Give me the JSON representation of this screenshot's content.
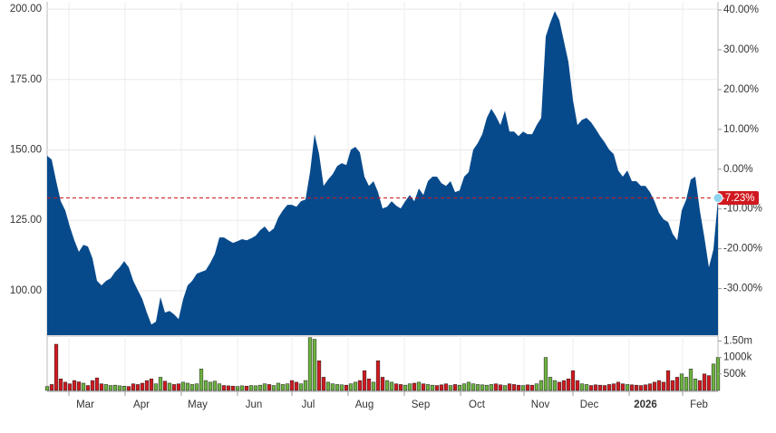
{
  "chart_data": [
    {
      "type": "area",
      "color": "#074a8c",
      "grid": true,
      "values": [
        147.9,
        146.6,
        138.9,
        131.8,
        128.5,
        122.8,
        117.9,
        113.8,
        116.3,
        115.7,
        111.5,
        103.5,
        101.9,
        103.5,
        104.4,
        106.7,
        108.3,
        110.5,
        108.3,
        103.5,
        100.2,
        97.0,
        92.2,
        88.0,
        89.0,
        97.7,
        92.2,
        92.8,
        91.6,
        89.9,
        97.0,
        101.9,
        103.5,
        106.0,
        106.7,
        107.3,
        109.9,
        113.1,
        118.9,
        118.9,
        117.9,
        117.0,
        117.6,
        118.3,
        117.9,
        118.6,
        119.5,
        121.5,
        122.8,
        120.8,
        122.1,
        126.0,
        128.5,
        130.5,
        130.5,
        129.8,
        131.8,
        132.4,
        142.1,
        155.6,
        148.5,
        137.2,
        139.5,
        141.4,
        144.3,
        145.3,
        144.6,
        150.1,
        151.1,
        149.1,
        140.5,
        137.2,
        138.9,
        135.0,
        129.2,
        129.8,
        131.8,
        130.2,
        129.2,
        131.8,
        134.0,
        131.8,
        136.3,
        134.0,
        138.9,
        140.5,
        140.5,
        138.2,
        137.2,
        138.9,
        135.0,
        135.6,
        140.5,
        142.1,
        150.1,
        152.4,
        155.6,
        161.4,
        164.6,
        162.0,
        158.8,
        163.9,
        156.5,
        156.5,
        154.9,
        156.5,
        155.6,
        155.6,
        158.8,
        161.4,
        190.3,
        195.2,
        199.3,
        196.1,
        188.7,
        181.3,
        167.8,
        158.8,
        160.7,
        161.4,
        159.8,
        157.5,
        154.9,
        152.7,
        150.1,
        148.5,
        142.7,
        140.5,
        142.7,
        138.9,
        138.9,
        137.2,
        137.2,
        135.0,
        131.8,
        127.6,
        125.3,
        124.4,
        120.2,
        117.9,
        128.5,
        132.4,
        139.5,
        140.5,
        128.5,
        118.9,
        108.3,
        114.7,
        132.7
      ],
      "xlim": [
        0,
        148
      ],
      "ylim": [
        84.2,
        202.6
      ],
      "yticks": [
        {
          "value": 100,
          "label": "100.00"
        },
        {
          "value": 125,
          "label": "125.00"
        },
        {
          "value": 150,
          "label": "150.00"
        },
        {
          "value": 175,
          "label": "175.00"
        },
        {
          "value": 200,
          "label": "200.00"
        }
      ],
      "y2lim": [
        -41.7,
        42.05
      ],
      "y2ticks": [
        {
          "value": -30,
          "label": "-30.00%"
        },
        {
          "value": -20,
          "label": "-20.00%"
        },
        {
          "value": -10,
          "label": "-10.00%"
        },
        {
          "value": 0,
          "label": "0.00%"
        },
        {
          "value": 10,
          "label": "10.00%"
        },
        {
          "value": 20,
          "label": "20.00%"
        },
        {
          "value": 30,
          "label": "30.00%"
        },
        {
          "value": 40,
          "label": "40.00%"
        }
      ],
      "current": {
        "value": -7.23,
        "label": "-7.23%",
        "axis": "y2",
        "color": "#d0191f"
      }
    },
    {
      "type": "bar",
      "colors": {
        "up": "#6db33f",
        "down": "#d0191f"
      },
      "values": [
        120000,
        180000,
        1400000,
        350000,
        250000,
        200000,
        300000,
        260000,
        220000,
        150000,
        300000,
        380000,
        200000,
        180000,
        150000,
        160000,
        140000,
        130000,
        120000,
        200000,
        180000,
        220000,
        300000,
        350000,
        200000,
        400000,
        280000,
        220000,
        180000,
        200000,
        250000,
        220000,
        180000,
        200000,
        650000,
        300000,
        250000,
        280000,
        200000,
        150000,
        140000,
        130000,
        120000,
        140000,
        130000,
        150000,
        140000,
        160000,
        200000,
        180000,
        150000,
        220000,
        180000,
        200000,
        300000,
        250000,
        200000,
        300000,
        1600000,
        1550000,
        900000,
        400000,
        250000,
        200000,
        180000,
        170000,
        160000,
        200000,
        250000,
        300000,
        600000,
        350000,
        250000,
        900000,
        400000,
        300000,
        250000,
        200000,
        180000,
        160000,
        200000,
        220000,
        250000,
        200000,
        180000,
        160000,
        150000,
        170000,
        200000,
        150000,
        180000,
        160000,
        200000,
        250000,
        200000,
        180000,
        170000,
        160000,
        180000,
        200000,
        170000,
        150000,
        200000,
        180000,
        160000,
        150000,
        170000,
        160000,
        200000,
        300000,
        1000000,
        400000,
        300000,
        250000,
        300000,
        350000,
        600000,
        300000,
        200000,
        180000,
        150000,
        170000,
        160000,
        150000,
        180000,
        200000,
        250000,
        200000,
        180000,
        170000,
        160000,
        150000,
        170000,
        200000,
        250000,
        300000,
        250000,
        600000,
        300000,
        400000,
        500000,
        400000,
        650000,
        350000,
        300000,
        500000,
        450000,
        800000,
        1000000
      ],
      "directions": [
        "up",
        "down",
        "down",
        "down",
        "down",
        "down",
        "down",
        "down",
        "up",
        "down",
        "down",
        "down",
        "down",
        "up",
        "up",
        "up",
        "up",
        "up",
        "down",
        "down",
        "down",
        "down",
        "down",
        "down",
        "up",
        "up",
        "down",
        "up",
        "down",
        "down",
        "up",
        "up",
        "up",
        "up",
        "up",
        "up",
        "up",
        "up",
        "up",
        "down",
        "down",
        "down",
        "up",
        "up",
        "down",
        "up",
        "up",
        "up",
        "up",
        "down",
        "up",
        "up",
        "up",
        "up",
        "down",
        "down",
        "up",
        "up",
        "up",
        "up",
        "down",
        "down",
        "up",
        "up",
        "up",
        "up",
        "down",
        "up",
        "up",
        "down",
        "down",
        "down",
        "up",
        "down",
        "down",
        "up",
        "up",
        "down",
        "down",
        "up",
        "up",
        "down",
        "up",
        "down",
        "up",
        "up",
        "down",
        "down",
        "down",
        "up",
        "down",
        "up",
        "up",
        "up",
        "up",
        "up",
        "up",
        "up",
        "up",
        "down",
        "down",
        "up",
        "down",
        "down",
        "down",
        "up",
        "down",
        "down",
        "up",
        "up",
        "up",
        "up",
        "up",
        "down",
        "down",
        "down",
        "down",
        "down",
        "up",
        "up",
        "down",
        "down",
        "down",
        "down",
        "down",
        "down",
        "down",
        "down",
        "up",
        "down",
        "down",
        "down",
        "down",
        "down",
        "down",
        "down",
        "down",
        "down",
        "down",
        "down",
        "up",
        "up",
        "up",
        "up",
        "down",
        "down",
        "down",
        "up",
        "up"
      ],
      "xlim": [
        0,
        148
      ],
      "xticks": [
        {
          "value": 8.4,
          "label": "Mar"
        },
        {
          "value": 20.8,
          "label": "Apr"
        },
        {
          "value": 33.2,
          "label": "May"
        },
        {
          "value": 45.6,
          "label": "Jun"
        },
        {
          "value": 57.6,
          "label": "Jul"
        },
        {
          "value": 70,
          "label": "Aug"
        },
        {
          "value": 82.4,
          "label": "Sep"
        },
        {
          "value": 94.8,
          "label": "Oct"
        },
        {
          "value": 108.8,
          "label": "Nov"
        },
        {
          "value": 119.6,
          "label": "Dec"
        },
        {
          "value": 132,
          "label": "2026"
        },
        {
          "value": 143.8,
          "label": "Feb"
        }
      ],
      "ylim": [
        0,
        1620000
      ],
      "yticks": [
        {
          "value": 500000,
          "label": "500k"
        },
        {
          "value": 1000000,
          "label": "1000k"
        },
        {
          "value": 1500000,
          "label": "1.50m"
        }
      ]
    }
  ]
}
